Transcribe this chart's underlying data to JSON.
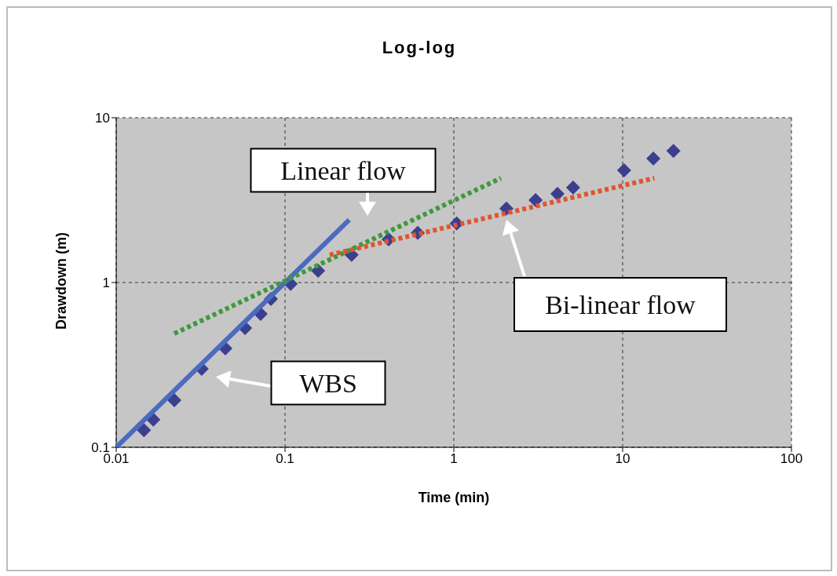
{
  "chart_data": {
    "type": "scatter",
    "title": "Log-log",
    "xlabel": "Time (min)",
    "ylabel": "Drawdown (m)",
    "log": "xy",
    "grid": true,
    "legend": false,
    "xlim": [
      0.01,
      100
    ],
    "xticks": [
      0.01,
      0.1,
      1,
      10,
      100
    ],
    "ylim": [
      0.1,
      10
    ],
    "yticks": [
      0.1,
      1,
      10
    ],
    "series": [
      {
        "marker": "diamond",
        "color": "#3b3f8e",
        "x": [
          0.0146,
          0.0166,
          0.0221,
          0.0321,
          0.0443,
          0.058,
          0.0717,
          0.0825,
          0.108,
          0.157,
          0.248,
          0.411,
          0.611,
          1.04,
          2.05,
          3.05,
          4.11,
          5.09,
          10.2,
          15.2,
          20.0
        ],
        "values": [
          0.127,
          0.147,
          0.193,
          0.299,
          0.398,
          0.53,
          0.645,
          0.794,
          0.98,
          1.18,
          1.47,
          1.83,
          2.0,
          2.28,
          2.81,
          3.16,
          3.45,
          3.77,
          4.8,
          5.65,
          6.3
        ]
      },
      {
        "type": "line",
        "marker": "none",
        "line_style": "solid",
        "color": "#4a6bc0",
        "x": [
          0.01,
          0.24
        ],
        "values": [
          0.1,
          2.4
        ]
      },
      {
        "type": "line",
        "marker": "none",
        "line_style": "dotted",
        "color": "#3d9a3d",
        "x": [
          0.0221,
          1.9
        ],
        "values": [
          0.49,
          4.3
        ]
      },
      {
        "type": "line",
        "marker": "none",
        "line_style": "dotted",
        "color": "#e0552e",
        "x": [
          0.184,
          15.4
        ],
        "values": [
          1.47,
          4.3
        ]
      }
    ],
    "annotations": [
      "Linear flow",
      "Bi-linear flow",
      "WBS"
    ]
  }
}
